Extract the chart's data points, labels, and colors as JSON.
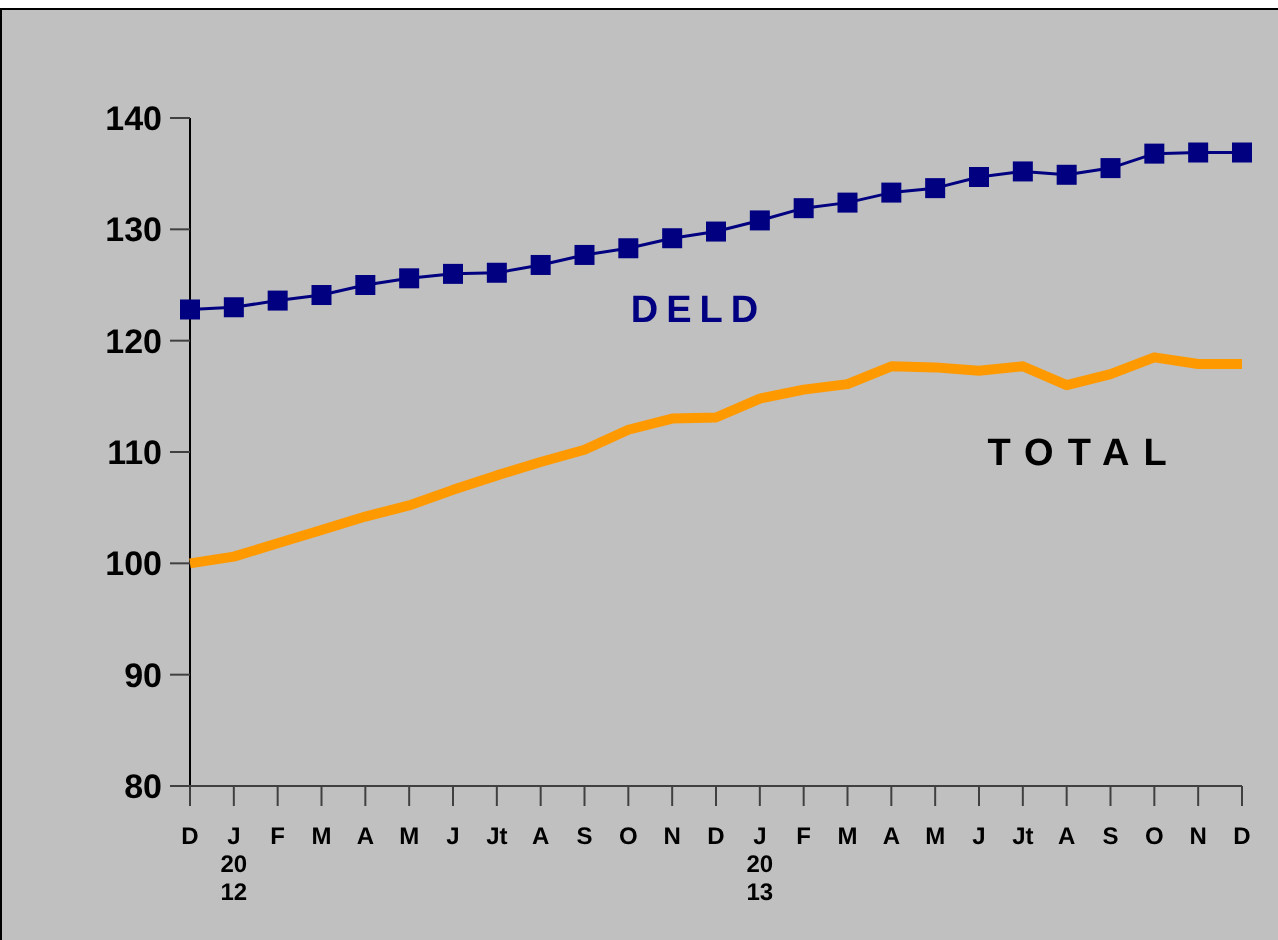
{
  "chart_data": {
    "type": "line",
    "categories": [
      "D",
      "J\n20\n12",
      "F",
      "M",
      "A",
      "M",
      "J",
      "Jt",
      "A",
      "S",
      "O",
      "N",
      "D",
      "J\n20\n13",
      "F",
      "M",
      "A",
      "M",
      "J",
      "Jt",
      "A",
      "S",
      "O",
      "N",
      "D"
    ],
    "series": [
      {
        "name": "DELD",
        "color": "#000080",
        "marker": "square",
        "values": [
          122.8,
          123.0,
          123.6,
          124.1,
          125.0,
          125.6,
          126.0,
          126.1,
          126.8,
          127.7,
          128.3,
          129.2,
          129.8,
          130.8,
          131.9,
          132.4,
          133.3,
          133.7,
          134.7,
          135.2,
          134.9,
          135.5,
          136.8,
          136.9,
          136.9
        ]
      },
      {
        "name": "TOTAL",
        "color": "#ff9900",
        "marker": "none",
        "values": [
          100.0,
          100.6,
          101.8,
          103.0,
          104.2,
          105.2,
          106.6,
          107.9,
          109.1,
          110.2,
          112.0,
          113.0,
          113.1,
          114.8,
          115.6,
          116.1,
          117.7,
          117.6,
          117.3,
          117.7,
          116.0,
          117.0,
          118.5,
          117.9,
          117.9
        ]
      }
    ],
    "ylim": [
      80,
      140
    ],
    "yticks": [
      80,
      90,
      100,
      110,
      120,
      130,
      140
    ],
    "grid": false
  }
}
